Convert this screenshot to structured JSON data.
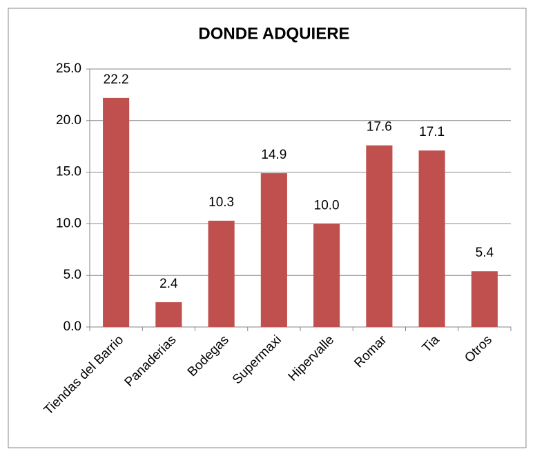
{
  "chart_data": {
    "type": "bar",
    "title": "DONDE ADQUIERE",
    "categories": [
      "Tiendas del Barrio",
      "Panaderias",
      "Bodegas",
      "Supermaxi",
      "Hipervalle",
      "Romar",
      "Tia",
      "Otros"
    ],
    "values": [
      22.2,
      2.4,
      10.3,
      14.9,
      10.0,
      17.6,
      17.1,
      5.4
    ],
    "value_labels": [
      "22.2",
      "2.4",
      "10.3",
      "14.9",
      "10.0",
      "17.6",
      "17.1",
      "5.4"
    ],
    "color": "#c0504d",
    "ylim": [
      0,
      25
    ],
    "yticks": [
      {
        "value": 0,
        "label": "0.0"
      },
      {
        "value": 5,
        "label": "5.0"
      },
      {
        "value": 10,
        "label": "10.0"
      },
      {
        "value": 15,
        "label": "15.0"
      },
      {
        "value": 20,
        "label": "20.0"
      },
      {
        "value": 25,
        "label": "25.0"
      }
    ],
    "grid": true
  }
}
